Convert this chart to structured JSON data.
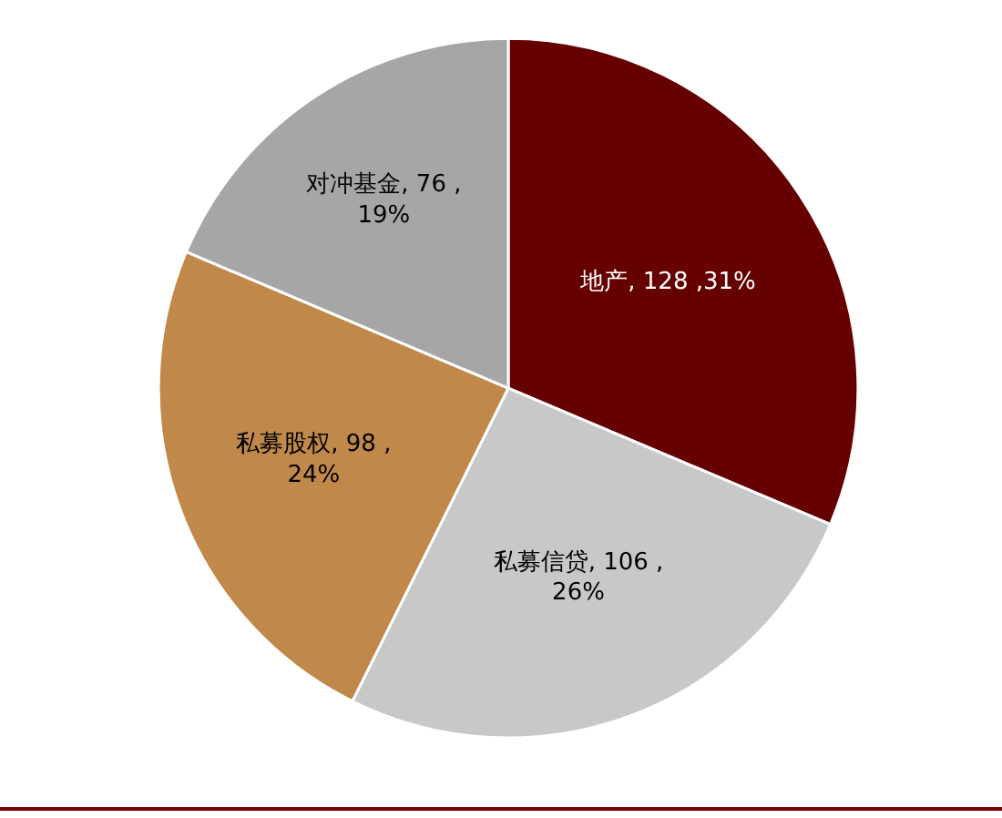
{
  "chart_data": {
    "type": "pie",
    "categories": [
      "地产",
      "私募信贷",
      "私募股权",
      "对冲基金"
    ],
    "values": [
      128,
      106,
      98,
      76
    ],
    "colors": [
      "#660000",
      "#c8c8c8",
      "#c0894a",
      "#a6a6a6"
    ],
    "value_labels": [
      "128 ,31%",
      "106 ,\n26%",
      "98 ,\n24%",
      "76 ,\n19%"
    ],
    "legend": false
  }
}
